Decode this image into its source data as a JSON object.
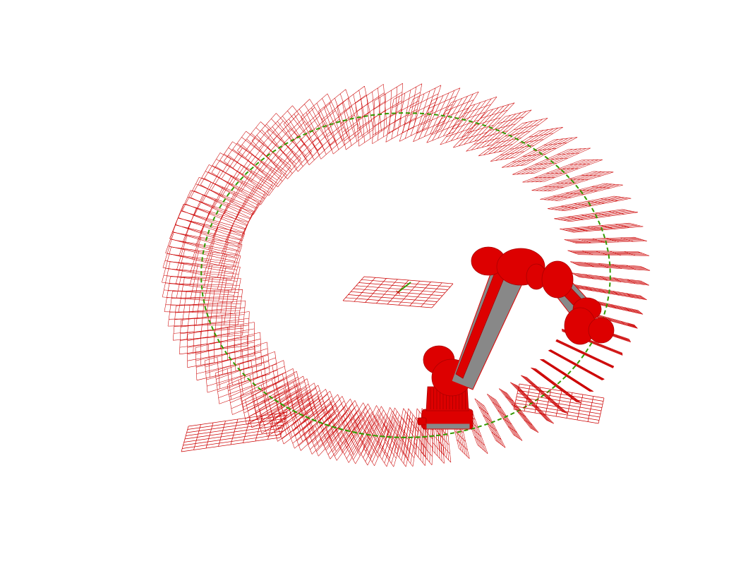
{
  "scene": {
    "background": "#ffffff",
    "frame_color": "#cc0000",
    "path_color": "#339900",
    "robot_color": "#dd0000",
    "robot_link_color": "#888888",
    "frame_count": 90,
    "grid_cells": 5
  }
}
